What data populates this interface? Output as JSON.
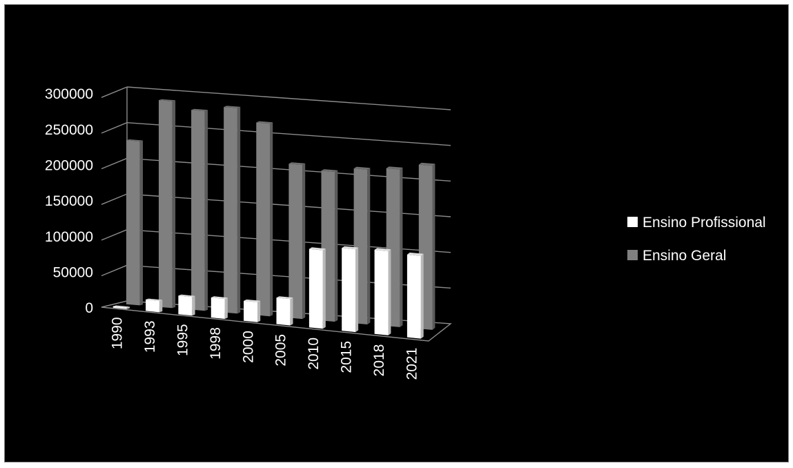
{
  "chart_data": {
    "type": "bar",
    "title": "",
    "xlabel": "",
    "ylabel": "",
    "categories": [
      "1990",
      "1993",
      "1995",
      "1998",
      "2000",
      "2005",
      "2010",
      "2015",
      "2018",
      "2021"
    ],
    "series": [
      {
        "name": "Ensino Profissional",
        "color": "#ffffff",
        "values": [
          2000,
          16000,
          26000,
          28000,
          28000,
          37000,
          110000,
          116000,
          118000,
          116000
        ]
      },
      {
        "name": "Ensino Geral",
        "color": "#7f7f7f",
        "values": [
          230000,
          290000,
          280000,
          288000,
          270000,
          216000,
          210000,
          217000,
          221000,
          230000
        ]
      }
    ],
    "ylim": [
      0,
      300000
    ],
    "yticks": [
      "0",
      "50000",
      "100000",
      "150000",
      "200000",
      "250000",
      "300000"
    ],
    "grid": true,
    "legend": "right",
    "background": "#000000"
  }
}
